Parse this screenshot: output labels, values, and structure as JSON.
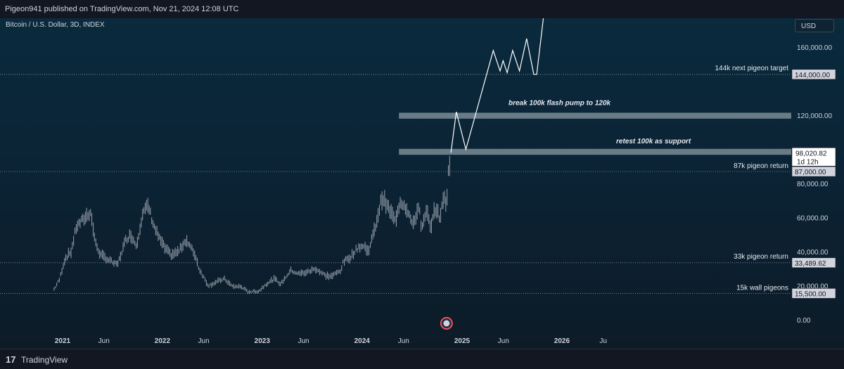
{
  "header": {
    "published": "Pigeon941 published on TradingView.com, Nov 21, 2024 12:08 UTC"
  },
  "symbol": "Bitcoin / U.S. Dollar, 3D, INDEX",
  "currency_button": "USD",
  "footer": {
    "brand": "TradingView",
    "logo": "tradingview-logo-icon"
  },
  "colors": {
    "background": "#0b2233",
    "candles": "#9aa2ad",
    "line": "#ffffff",
    "zone": "#8a9aa2",
    "label_bg": "#d1d4dc"
  },
  "price_axis_ticks": [
    "160,000.00",
    "120,000.00",
    "80,000.00",
    "60,000.00",
    "40,000.00",
    "20,000.00",
    "0.00"
  ],
  "time_axis_ticks": [
    "2021",
    "Jun",
    "2022",
    "Jun",
    "2023",
    "Jun",
    "2024",
    "Jun",
    "2025",
    "Jun",
    "2026",
    "Ju"
  ],
  "price_labels": [
    {
      "text": "144,000.00",
      "value": 144000
    },
    {
      "text": "87,000.00",
      "value": 87000
    },
    {
      "text": "33,489.62",
      "value": 33489.62
    },
    {
      "text": "15,500.00",
      "value": 15500
    }
  ],
  "current_price": {
    "text": "98,020.82",
    "countdown": "1d 12h",
    "value": 98020.82
  },
  "annotations": [
    {
      "text": "144k next pigeon target",
      "value": 144000
    },
    {
      "text": "87k pigeon return",
      "value": 87000
    },
    {
      "text": "33k pigeon return",
      "value": 33489.62
    },
    {
      "text": "15k wall pigeons",
      "value": 15500
    },
    {
      "text": "break 100k flash pump to 120k",
      "value": 126000
    },
    {
      "text": "retest 100k as support",
      "value": 103500
    }
  ],
  "chart_data": {
    "type": "line",
    "scale": "linear",
    "ylim": [
      0,
      180000
    ],
    "grid": false,
    "series": [
      {
        "kind": "candles",
        "x": [
          "2020-12-01",
          "2020-12-20",
          "2021-01-10",
          "2021-02-01",
          "2021-02-21",
          "2021-03-13",
          "2021-04-13",
          "2021-05-01",
          "2021-05-20",
          "2021-06-20",
          "2021-07-20",
          "2021-08-20",
          "2021-09-07",
          "2021-09-28",
          "2021-10-20",
          "2021-11-10",
          "2021-12-01",
          "2021-12-20",
          "2022-01-10",
          "2022-02-01",
          "2022-03-01",
          "2022-03-28",
          "2022-05-01",
          "2022-05-15",
          "2022-06-18",
          "2022-07-15",
          "2022-08-15",
          "2022-09-15",
          "2022-10-15",
          "2022-11-09",
          "2022-11-21",
          "2022-12-20",
          "2023-01-15",
          "2023-02-15",
          "2023-03-10",
          "2023-04-15",
          "2023-05-15",
          "2023-06-15",
          "2023-07-15",
          "2023-08-20",
          "2023-09-11",
          "2023-10-15",
          "2023-10-25",
          "2023-11-20",
          "2023-12-20",
          "2024-01-10",
          "2024-01-23",
          "2024-02-15",
          "2024-03-14",
          "2024-04-15",
          "2024-05-01",
          "2024-05-20",
          "2024-06-15",
          "2024-07-05",
          "2024-07-29",
          "2024-08-05",
          "2024-08-25",
          "2024-09-06",
          "2024-09-27",
          "2024-10-10",
          "2024-10-29",
          "2024-11-05",
          "2024-11-13",
          "2024-11-21"
        ],
        "values": [
          18000,
          23500,
          36000,
          40000,
          55000,
          58000,
          63500,
          45000,
          38000,
          35000,
          32000,
          47000,
          50000,
          43500,
          62000,
          67000,
          55000,
          48000,
          42000,
          38000,
          40000,
          47000,
          38000,
          30000,
          20000,
          22000,
          24000,
          19500,
          19500,
          16500,
          16500,
          16800,
          21000,
          24000,
          21000,
          29000,
          27000,
          28000,
          30000,
          26000,
          25500,
          29000,
          34000,
          37000,
          43000,
          43000,
          40000,
          52000,
          72000,
          63000,
          58000,
          70000,
          65000,
          55000,
          68000,
          52000,
          64000,
          54000,
          66000,
          60000,
          72000,
          68000,
          89000,
          98020.82
        ]
      },
      {
        "name": "",
        "kind": "projection",
        "x": [
          "2024-11-21",
          "2024-12-11",
          "2025-01-15",
          "2025-04-25",
          "2025-05-20",
          "2025-05-31",
          "2025-06-15",
          "2025-07-05",
          "2025-07-30",
          "2025-08-25",
          "2025-09-20",
          "2025-10-01",
          "2025-11-15"
        ],
        "values": [
          98000,
          122000,
          100000,
          158000,
          146000,
          152000,
          145000,
          158000,
          146000,
          165000,
          144000,
          144000,
          205000
        ]
      }
    ],
    "zones": [
      {
        "label": "break 100k flash pump to 120k",
        "low": 118000,
        "high": 121500,
        "start": "2024-05-15"
      },
      {
        "label": "retest 100k as support",
        "low": 96800,
        "high": 100300,
        "start": "2024-05-15"
      }
    ],
    "events": [
      {
        "label": "us-flag-icon",
        "x": "2024-11-05"
      }
    ]
  }
}
